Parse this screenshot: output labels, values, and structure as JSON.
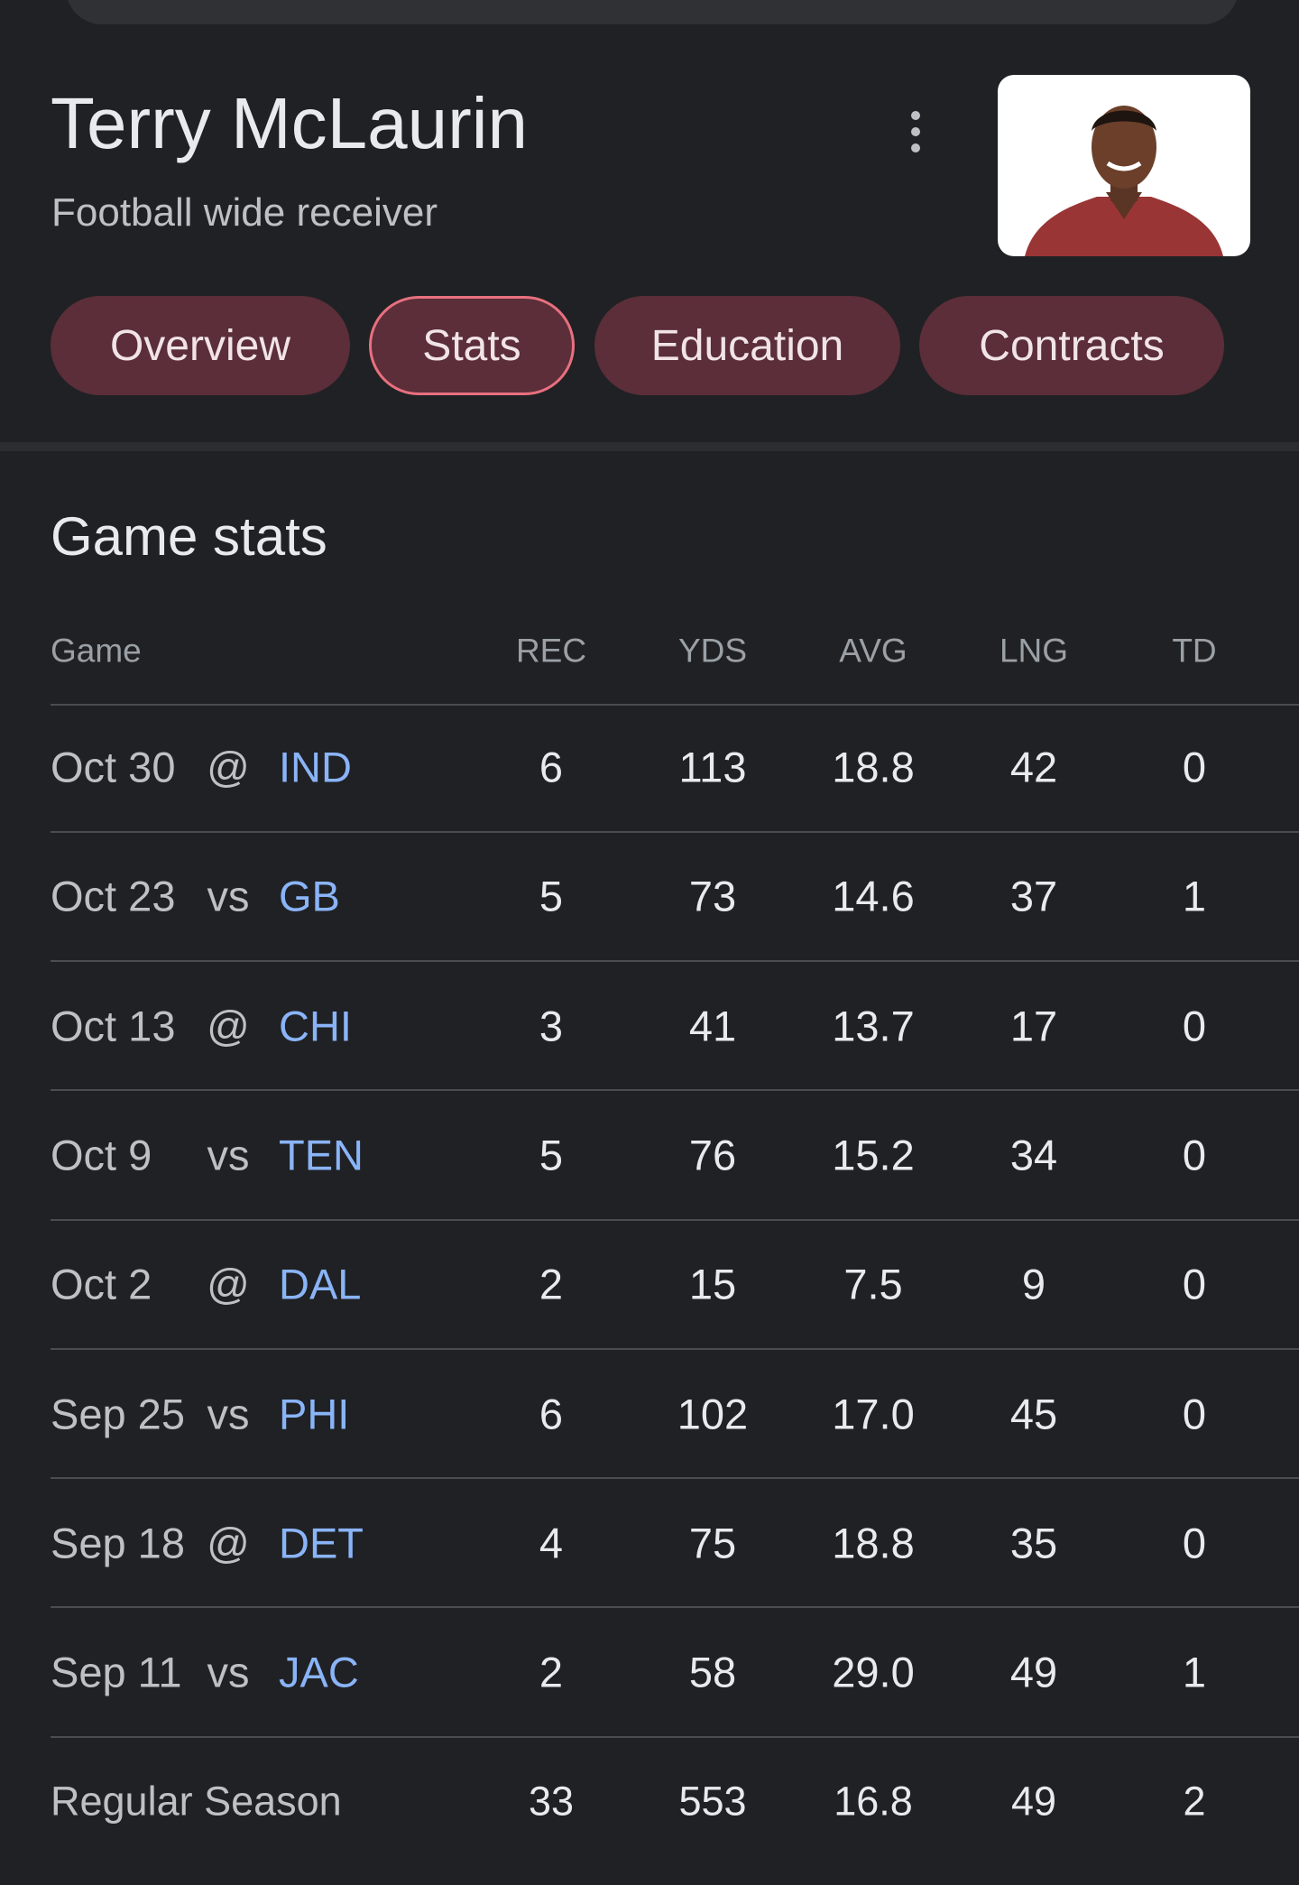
{
  "header": {
    "name": "Terry McLaurin",
    "subtitle": "Football wide receiver"
  },
  "tabs": [
    "Overview",
    "Stats",
    "Education",
    "Contracts"
  ],
  "section_title": "Game stats",
  "table": {
    "columns": [
      "Game",
      "REC",
      "YDS",
      "AVG",
      "LNG",
      "TD"
    ],
    "rows": [
      [
        "Oct 30",
        "@",
        "IND",
        "6",
        "113",
        "18.8",
        "42",
        "0"
      ],
      [
        "Oct 23",
        "vs",
        "GB",
        "5",
        "73",
        "14.6",
        "37",
        "1"
      ],
      [
        "Oct 13",
        "@",
        "CHI",
        "3",
        "41",
        "13.7",
        "17",
        "0"
      ],
      [
        "Oct 9",
        "vs",
        "TEN",
        "5",
        "76",
        "15.2",
        "34",
        "0"
      ],
      [
        "Oct 2",
        "@",
        "DAL",
        "2",
        "15",
        "7.5",
        "9",
        "0"
      ],
      [
        "Sep 25",
        "vs",
        "PHI",
        "6",
        "102",
        "17.0",
        "45",
        "0"
      ],
      [
        "Sep 18",
        "@",
        "DET",
        "4",
        "75",
        "18.8",
        "35",
        "0"
      ],
      [
        "Sep 11",
        "vs",
        "JAC",
        "2",
        "58",
        "29.0",
        "49",
        "1"
      ]
    ],
    "total": [
      "Regular Season",
      "33",
      "553",
      "16.8",
      "49",
      "2"
    ]
  }
}
